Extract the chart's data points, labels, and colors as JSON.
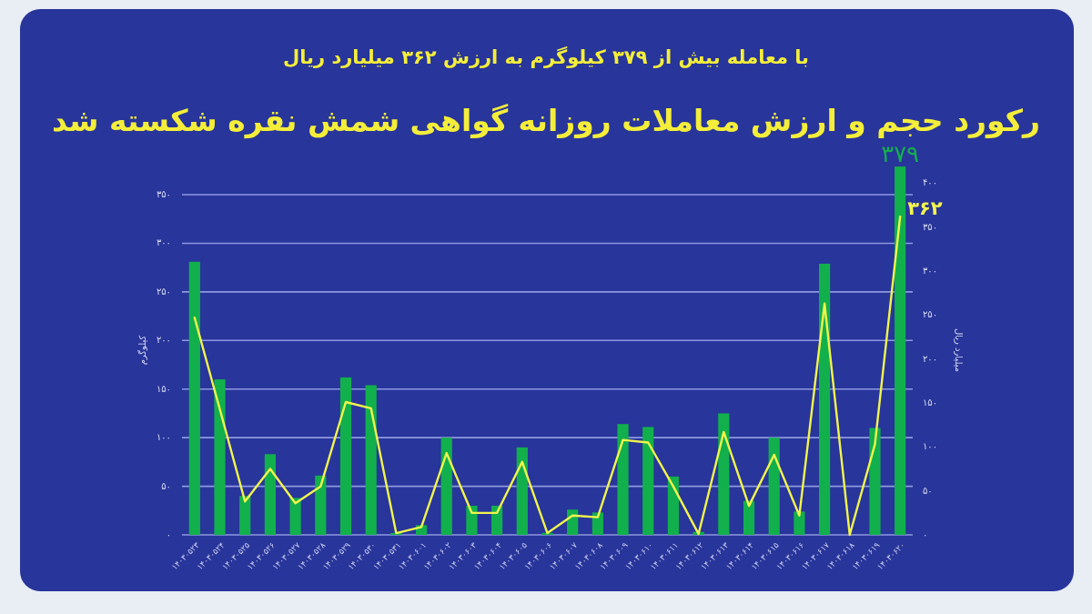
{
  "chart_data": {
    "type": "bar",
    "title": "رکورد حجم و ارزش معاملات روزانه گواهی شمش نقره شکسته شد",
    "subtitle": "با معامله بیش از ۳۷۹ کیلوگرم به ارزش ۳۶۲ میلیارد ریال",
    "ylabel": "کیلوگرم",
    "y2label": "میلیارد ریال",
    "categories": [
      "۱۴۰۳۰۵۲۳",
      "۱۴۰۳۰۵۲۴",
      "۱۴۰۳۰۵۲۵",
      "۱۴۰۳۰۵۲۶",
      "۱۴۰۳۰۵۲۷",
      "۱۴۰۳۰۵۲۸",
      "۱۴۰۳۰۵۲۹",
      "۱۴۰۳۰۵۳۰",
      "۱۴۰۳۰۵۳۱",
      "۱۴۰۳۰۶۰۱",
      "۱۴۰۳۰۶۰۲",
      "۱۴۰۳۰۶۰۳",
      "۱۴۰۳۰۶۰۴",
      "۱۴۰۳۰۶۰۵",
      "۱۴۰۳۰۶۰۶",
      "۱۴۰۳۰۶۰۷",
      "۱۴۰۳۰۶۰۸",
      "۱۴۰۳۰۶۰۹",
      "۱۴۰۳۰۶۱۰",
      "۱۴۰۳۰۶۱۱",
      "۱۴۰۳۰۶۱۲",
      "۱۴۰۳۰۶۱۳",
      "۱۴۰۳۰۶۱۴",
      "۱۴۰۳۰۶۱۵",
      "۱۴۰۳۰۶۱۶",
      "۱۴۰۳۰۶۱۷",
      "۱۴۰۳۰۶۱۸",
      "۱۴۰۳۰۶۱۹",
      "۱۴۰۳۰۶۲۰"
    ],
    "series": [
      {
        "color": "#12b04c",
        "values": [
          281,
          160,
          40,
          83,
          38,
          61,
          162,
          154,
          2,
          10,
          100,
          30,
          30,
          90,
          2,
          26,
          23,
          114,
          111,
          60,
          3,
          125,
          35,
          100,
          24,
          279,
          0,
          110,
          379
        ],
        "value_labels": [
          null,
          null,
          null,
          null,
          null,
          null,
          null,
          null,
          null,
          null,
          null,
          null,
          null,
          null,
          null,
          null,
          null,
          null,
          null,
          null,
          null,
          null,
          null,
          null,
          null,
          null,
          null,
          null,
          "۳۷۹"
        ]
      },
      {
        "type": "line",
        "axis": "y2",
        "color": "#f2f54c",
        "values": [
          247,
          143,
          38,
          75,
          36,
          55,
          151,
          144,
          2,
          9,
          93,
          25,
          25,
          83,
          2,
          22,
          20,
          108,
          105,
          55,
          1,
          117,
          33,
          91,
          22,
          263,
          0,
          103,
          362
        ],
        "value_labels": [
          null,
          null,
          null,
          null,
          null,
          null,
          null,
          null,
          null,
          null,
          null,
          null,
          null,
          null,
          null,
          null,
          null,
          null,
          null,
          null,
          null,
          null,
          null,
          null,
          null,
          null,
          null,
          null,
          "۳۶۲"
        ]
      }
    ],
    "ylim": [
      0,
      380
    ],
    "yticks": [
      {
        "value": 0,
        "label": "۰"
      },
      {
        "value": 50,
        "label": "۵۰"
      },
      {
        "value": 100,
        "label": "۱۰۰"
      },
      {
        "value": 150,
        "label": "۱۵۰"
      },
      {
        "value": 200,
        "label": "۲۰۰"
      },
      {
        "value": 250,
        "label": "۲۵۰"
      },
      {
        "value": 300,
        "label": "۳۰۰"
      },
      {
        "value": 350,
        "label": "۳۵۰"
      }
    ],
    "y2lim": [
      0,
      420
    ],
    "y2ticks": [
      {
        "value": 0,
        "label": "۰"
      },
      {
        "value": 50,
        "label": "۵۰"
      },
      {
        "value": 100,
        "label": "۱۰۰"
      },
      {
        "value": 150,
        "label": "۱۵۰"
      },
      {
        "value": 200,
        "label": "۲۰۰"
      },
      {
        "value": 250,
        "label": "۲۵۰"
      },
      {
        "value": 300,
        "label": "۳۰۰"
      },
      {
        "value": 350,
        "label": "۳۵۰"
      },
      {
        "value": 400,
        "label": "۴۰۰"
      }
    ],
    "grid": "y"
  }
}
